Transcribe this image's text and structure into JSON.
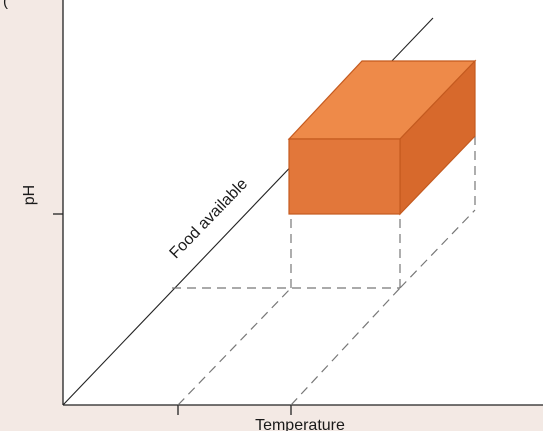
{
  "panel_label": "(",
  "axes": {
    "x_label": "Temperature",
    "y_label": "pH",
    "z_label": "Food available"
  },
  "colors": {
    "background": "#f3e9e4",
    "plot_background": "#ffffff",
    "box_front": "#e2773a",
    "box_top": "#ee8a49",
    "box_side": "#d7692c",
    "box_edge": "#c45a1f",
    "axis": "#222222",
    "dashed": "#777777"
  }
}
